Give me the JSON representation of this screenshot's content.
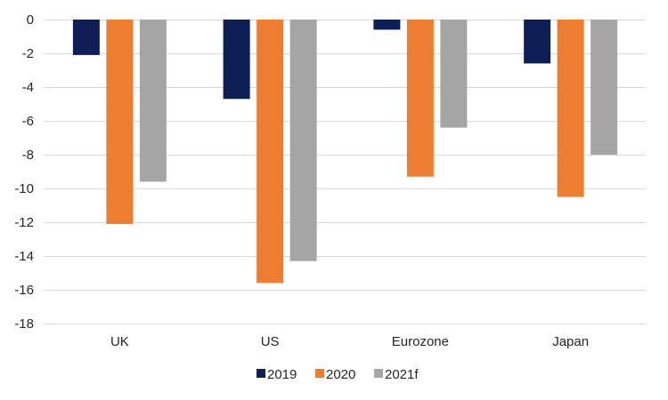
{
  "chart_data": {
    "type": "bar",
    "title": "",
    "xlabel": "",
    "ylabel": "",
    "categories": [
      "UK",
      "US",
      "Eurozone",
      "Japan"
    ],
    "series": [
      {
        "name": "2019",
        "color": "#0e1f55",
        "values": [
          -2.1,
          -4.7,
          -0.6,
          -2.6
        ]
      },
      {
        "name": "2020",
        "color": "#ed7d31",
        "values": [
          -12.1,
          -15.6,
          -9.3,
          -10.5
        ]
      },
      {
        "name": "2021f",
        "color": "#a5a5a5",
        "values": [
          -9.6,
          -14.3,
          -6.4,
          -8.0
        ]
      }
    ],
    "ylim": [
      -18,
      0
    ],
    "yticks": [
      0,
      -2,
      -4,
      -6,
      -8,
      -10,
      -12,
      -14,
      -16,
      -18
    ],
    "grid": true,
    "legend_position": "bottom"
  }
}
